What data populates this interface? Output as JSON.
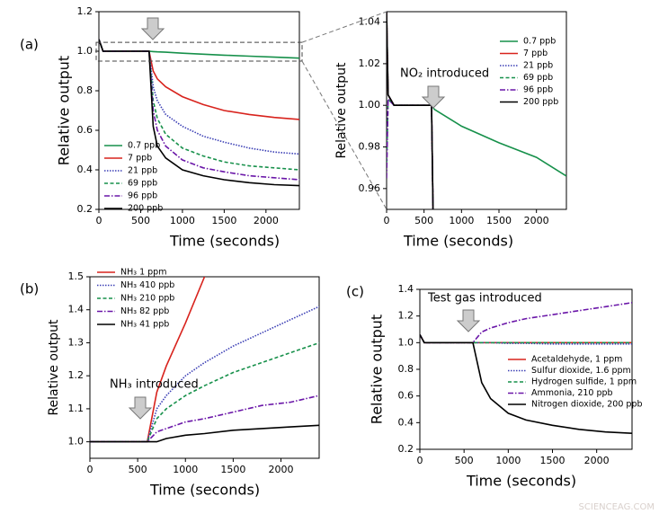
{
  "watermark": "SCIENCEAG.COM",
  "chart_data": [
    {
      "type": "line",
      "label": "(a)",
      "x_label": "Time (seconds)",
      "y_label": "Relative output",
      "x": [
        0,
        50,
        300,
        600,
        650,
        700,
        800,
        1000,
        1250,
        1500,
        1800,
        2100,
        2400
      ],
      "xlim": [
        0,
        2400
      ],
      "xticks": [
        0,
        500,
        1000,
        1500,
        2000
      ],
      "ylim": [
        0.2,
        1.2
      ],
      "yticks": [
        0.2,
        0.4,
        0.6,
        0.8,
        {
          "value": 1,
          "label": "1.0"
        },
        1.2
      ],
      "series": [
        {
          "name": "0.7 ppb",
          "color": "#16904a",
          "dash": "solid",
          "values": [
            1.06,
            1.0,
            1.0,
            1.0,
            0.998,
            0.997,
            0.995,
            0.99,
            0.985,
            0.98,
            0.975,
            0.97,
            0.965
          ]
        },
        {
          "name": "7 ppb",
          "color": "#d8231d",
          "dash": "solid",
          "values": [
            1.06,
            1.0,
            1.0,
            1.0,
            0.9,
            0.86,
            0.82,
            0.77,
            0.73,
            0.7,
            0.68,
            0.665,
            0.655
          ]
        },
        {
          "name": "21 ppb",
          "color": "#3b3fb5",
          "dash": "dotted",
          "values": [
            1.06,
            1.0,
            1.0,
            1.0,
            0.82,
            0.75,
            0.68,
            0.62,
            0.57,
            0.54,
            0.51,
            0.49,
            0.48
          ]
        },
        {
          "name": "69 ppb",
          "color": "#16904a",
          "dash": "dashed",
          "values": [
            1.06,
            1.0,
            1.0,
            1.0,
            0.75,
            0.66,
            0.58,
            0.51,
            0.47,
            0.44,
            0.42,
            0.41,
            0.4
          ]
        },
        {
          "name": "96 ppb",
          "color": "#6a16a8",
          "dash": "dashdot",
          "values": [
            1.06,
            1.0,
            1.0,
            1.0,
            0.7,
            0.6,
            0.52,
            0.45,
            0.41,
            0.39,
            0.37,
            0.36,
            0.35
          ]
        },
        {
          "name": "200 ppb",
          "color": "#000000",
          "dash": "solid",
          "values": [
            1.06,
            1.0,
            1.0,
            1.0,
            0.62,
            0.52,
            0.46,
            0.4,
            0.37,
            0.35,
            0.335,
            0.325,
            0.32
          ]
        }
      ]
    },
    {
      "type": "line",
      "x_label": "Time (seconds)",
      "y_label": "Relative output",
      "annotation": "NO₂ introduced",
      "x": [
        0,
        20,
        100,
        300,
        600,
        640,
        1000,
        1500,
        2000,
        2400
      ],
      "xlim": [
        0,
        2400
      ],
      "xticks": [
        0,
        500,
        1000,
        1500,
        2000
      ],
      "ylim": [
        0.95,
        1.045
      ],
      "yticks": [
        0.96,
        0.98,
        {
          "value": 1,
          "label": "1.00"
        },
        1.02,
        1.04
      ],
      "series": [
        {
          "name": "0.7 ppb",
          "color": "#16904a",
          "dash": "solid",
          "values": [
            1.045,
            1.005,
            1.0,
            1.0,
            1.0,
            0.998,
            0.99,
            0.982,
            0.975,
            0.966
          ]
        },
        {
          "name": "7 ppb",
          "color": "#d8231d",
          "dash": "solid",
          "values": [
            1.045,
            1.005,
            1.0,
            1.0,
            1.0,
            0.9,
            null,
            null,
            null,
            null
          ]
        },
        {
          "name": "21 ppb",
          "color": "#3b3fb5",
          "dash": "dotted",
          "values": [
            1.045,
            1.005,
            1.0,
            1.0,
            1.0,
            0.9,
            null,
            null,
            null,
            null
          ]
        },
        {
          "name": "69 ppb",
          "color": "#16904a",
          "dash": "dashed",
          "values": [
            0.97,
            1.003,
            1.0,
            1.0,
            1.0,
            0.9,
            null,
            null,
            null,
            null
          ]
        },
        {
          "name": "96 ppb",
          "color": "#6a16a8",
          "dash": "dashdot",
          "values": [
            0.965,
            1.003,
            1.0,
            1.0,
            1.0,
            0.9,
            null,
            null,
            null,
            null
          ]
        },
        {
          "name": "200 ppb",
          "color": "#000000",
          "dash": "solid",
          "values": [
            1.045,
            1.005,
            1.0,
            1.0,
            1.0,
            0.9,
            null,
            null,
            null,
            null
          ]
        }
      ]
    },
    {
      "type": "line",
      "label": "(b)",
      "x_label": "Time (seconds)",
      "y_label": "Relative output",
      "annotation": "NH₃ introduced",
      "x": [
        0,
        300,
        600,
        700,
        800,
        1000,
        1200,
        1500,
        1800,
        2100,
        2400
      ],
      "xlim": [
        0,
        2400
      ],
      "xticks": [
        0,
        500,
        1000,
        1500,
        2000
      ],
      "ylim": [
        0.95,
        1.5
      ],
      "yticks": [
        {
          "value": 1,
          "label": "1.0"
        },
        1.1,
        1.2,
        1.3,
        1.4,
        1.5
      ],
      "series": [
        {
          "name": "NH₃ 1 ppm",
          "color": "#d8231d",
          "dash": "solid",
          "values": [
            1.0,
            1.0,
            1.0,
            1.15,
            1.23,
            1.36,
            1.5,
            null,
            null,
            null,
            null
          ]
        },
        {
          "name": "NH₃ 410 ppb",
          "color": "#3b3fb5",
          "dash": "dotted",
          "values": [
            1.0,
            1.0,
            1.0,
            1.1,
            1.14,
            1.2,
            1.24,
            1.29,
            1.33,
            1.37,
            1.41
          ]
        },
        {
          "name": "NH₃ 210 ppb",
          "color": "#16904a",
          "dash": "dashed",
          "values": [
            1.0,
            1.0,
            1.0,
            1.07,
            1.1,
            1.14,
            1.17,
            1.21,
            1.24,
            1.27,
            1.3
          ]
        },
        {
          "name": "NH₃ 82 ppb",
          "color": "#6a16a8",
          "dash": "dashdot",
          "values": [
            1.0,
            1.0,
            1.0,
            1.03,
            1.04,
            1.06,
            1.07,
            1.09,
            1.11,
            1.12,
            1.14
          ]
        },
        {
          "name": "NH₃ 41 ppb",
          "color": "#000000",
          "dash": "solid",
          "values": [
            1.0,
            1.0,
            1.0,
            1.0,
            1.01,
            1.02,
            1.025,
            1.035,
            1.04,
            1.045,
            1.05
          ]
        }
      ]
    },
    {
      "type": "line",
      "label": "(c)",
      "x_label": "Time (seconds)",
      "y_label": "Relative output",
      "annotation": "Test gas introduced",
      "x": [
        0,
        50,
        300,
        600,
        700,
        800,
        1000,
        1200,
        1500,
        1800,
        2100,
        2400
      ],
      "xlim": [
        0,
        2400
      ],
      "xticks": [
        0,
        500,
        1000,
        1500,
        2000
      ],
      "ylim": [
        0.2,
        1.4
      ],
      "yticks": [
        0.2,
        0.4,
        0.6,
        0.8,
        {
          "value": 1,
          "label": "1.0"
        },
        1.2,
        1.4
      ],
      "series": [
        {
          "name": "Acetaldehyde, 1 ppm",
          "color": "#d8231d",
          "dash": "solid",
          "values": [
            1.06,
            1.0,
            1.0,
            1.0,
            1.0,
            1.0,
            1.0,
            1.0,
            1.0,
            1.0,
            1.0,
            1.0
          ]
        },
        {
          "name": "Sulfur dioxide, 1.6 ppm",
          "color": "#3b3fb5",
          "dash": "dotted",
          "values": [
            1.06,
            1.0,
            1.0,
            1.0,
            1.0,
            1.0,
            0.995,
            0.995,
            0.99,
            0.99,
            0.99,
            0.99
          ]
        },
        {
          "name": "Hydrogen sulfide, 1 ppm",
          "color": "#16904a",
          "dash": "dashed",
          "values": [
            1.06,
            1.0,
            1.0,
            1.0,
            1.0,
            1.0,
            1.0,
            1.0,
            1.0,
            1.0,
            1.0,
            1.0
          ]
        },
        {
          "name": "Ammonia, 210 ppb",
          "color": "#6a16a8",
          "dash": "dashdot",
          "values": [
            1.06,
            1.0,
            1.0,
            1.0,
            1.08,
            1.11,
            1.15,
            1.18,
            1.21,
            1.24,
            1.27,
            1.3
          ]
        },
        {
          "name": "Nitrogen dioxide, 200 ppb",
          "color": "#000000",
          "dash": "solid",
          "values": [
            1.06,
            1.0,
            1.0,
            1.0,
            0.7,
            0.58,
            0.47,
            0.42,
            0.38,
            0.35,
            0.33,
            0.32
          ]
        }
      ]
    }
  ]
}
